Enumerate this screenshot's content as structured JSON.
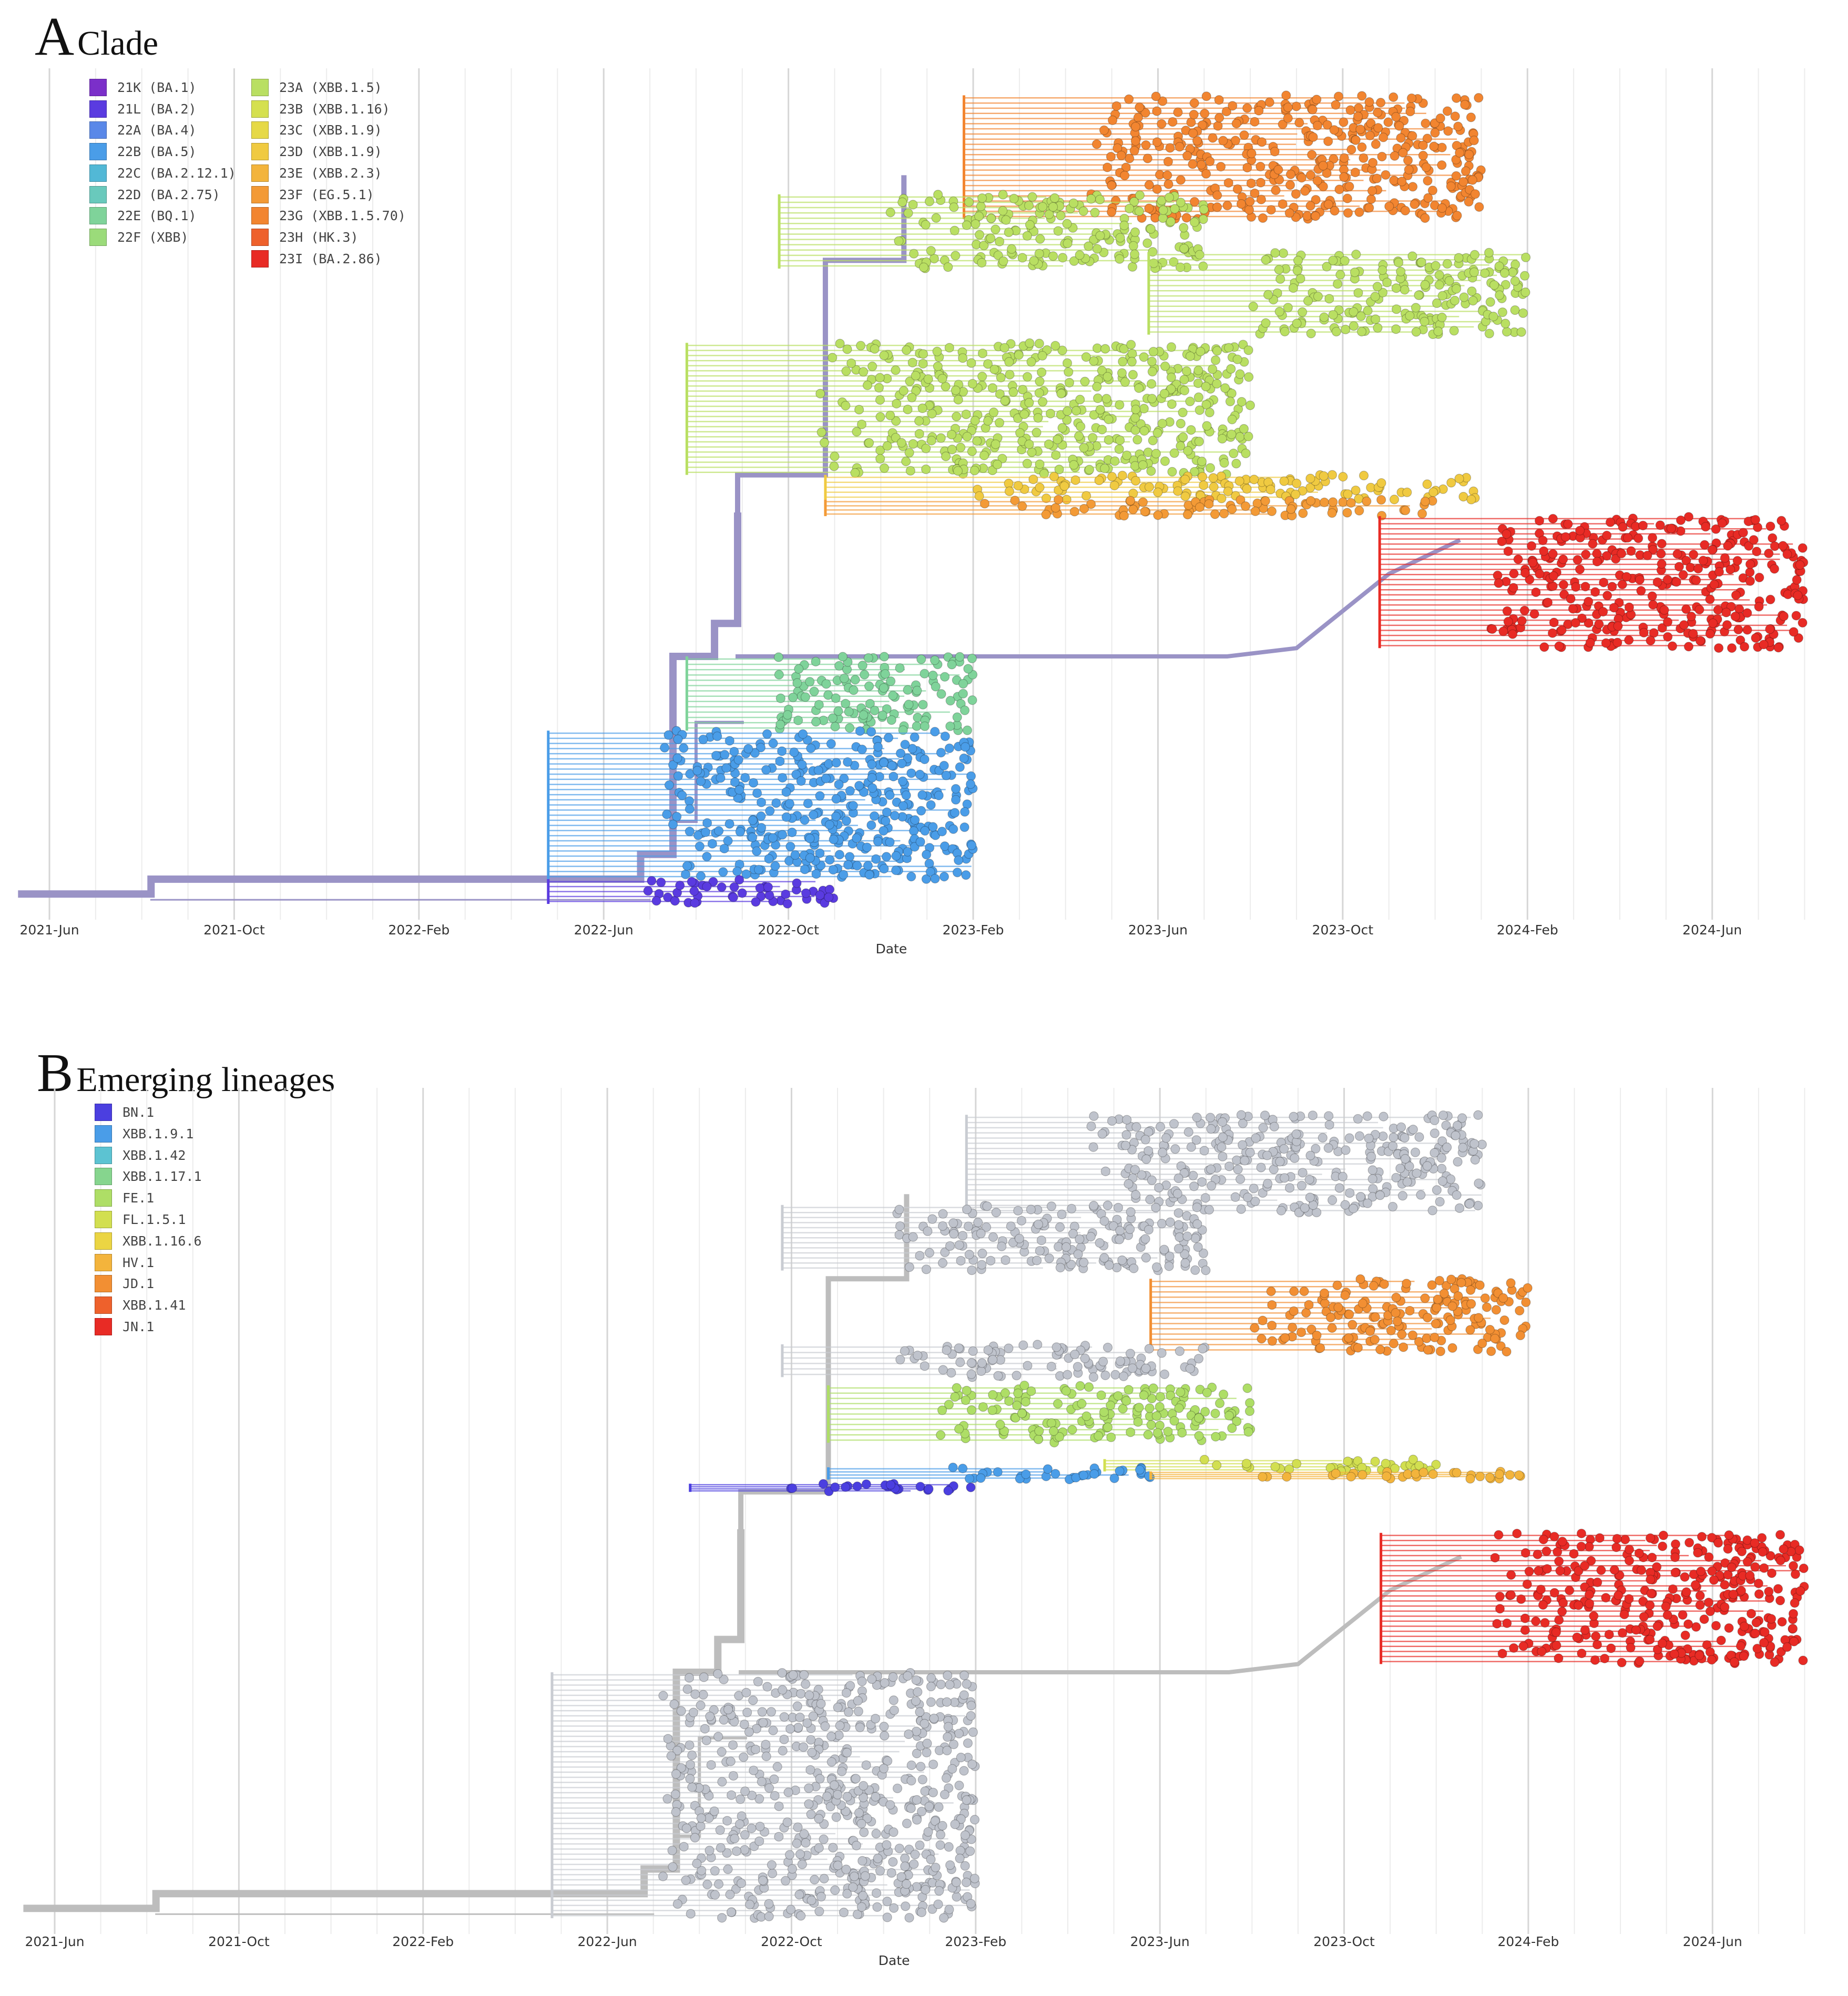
{
  "chart_data": [
    {
      "panel": "A",
      "title": "Clade",
      "type": "scatter",
      "subtype": "time-scaled phylogenetic tree",
      "xlabel": "Date",
      "x_ticks": [
        "2021-Jun",
        "2021-Oct",
        "2022-Feb",
        "2022-Jun",
        "2022-Oct",
        "2023-Feb",
        "2023-Jun",
        "2023-Oct",
        "2024-Feb",
        "2024-Jun"
      ],
      "xlim": [
        "2021-Jun",
        "2024-Aug"
      ],
      "legend_title": "",
      "legend_placement": "top-left",
      "legend": [
        {
          "label": "21K (BA.1)",
          "color": "#7B2FC9"
        },
        {
          "label": "21L (BA.2)",
          "color": "#5A3BE0"
        },
        {
          "label": "22A (BA.4)",
          "color": "#5A88E8"
        },
        {
          "label": "22B (BA.5)",
          "color": "#4A9DE8"
        },
        {
          "label": "22C (BA.2.12.1)",
          "color": "#52B8D6"
        },
        {
          "label": "22D (BA.2.75)",
          "color": "#69C9BC"
        },
        {
          "label": "22E (BQ.1)",
          "color": "#7FD39A"
        },
        {
          "label": "22F (XBB)",
          "color": "#9BDB7A"
        },
        {
          "label": "23A (XBB.1.5)",
          "color": "#B9DF62"
        },
        {
          "label": "23B (XBB.1.16)",
          "color": "#D5E04F"
        },
        {
          "label": "23C (XBB.1.9)",
          "color": "#E6D947"
        },
        {
          "label": "23D (XBB.1.9)",
          "color": "#F0CA41"
        },
        {
          "label": "23E (XBB.2.3)",
          "color": "#F3B43C"
        },
        {
          "label": "23F (EG.5.1)",
          "color": "#F39A36"
        },
        {
          "label": "23G (XBB.1.5.70)",
          "color": "#F28530"
        },
        {
          "label": "23H (HK.3)",
          "color": "#EE612C"
        },
        {
          "label": "23I (BA.2.86)",
          "color": "#E82B25"
        }
      ],
      "clusters": [
        {
          "clade": "23G (XBB.1.5.70)",
          "x_range": [
            "2023-Mar",
            "2024-Jan"
          ],
          "y_range": [
            0.83,
            0.98
          ]
        },
        {
          "clade": "23A (XBB.1.5)",
          "x_range": [
            "2022-Nov",
            "2023-Jul"
          ],
          "y_range": [
            0.77,
            0.86
          ]
        },
        {
          "clade": "23A (XBB.1.5)",
          "x_range": [
            "2023-Jul",
            "2024-Feb"
          ],
          "y_range": [
            0.69,
            0.79
          ]
        },
        {
          "clade": "23A (XBB.1.5)",
          "x_range": [
            "2022-Sep",
            "2023-Aug"
          ],
          "y_range": [
            0.52,
            0.68
          ]
        },
        {
          "clade": "23D (XBB.1.9)",
          "x_range": [
            "2022-Dec",
            "2024-Jan"
          ],
          "y_range": [
            0.49,
            0.52
          ]
        },
        {
          "clade": "23F (EG.5.1)",
          "x_range": [
            "2022-Dec",
            "2023-Dec"
          ],
          "y_range": [
            0.47,
            0.49
          ]
        },
        {
          "clade": "23I (BA.2.86)",
          "x_range": [
            "2023-Dec",
            "2024-Aug"
          ],
          "y_range": [
            0.31,
            0.47
          ]
        },
        {
          "clade": "22E (BQ.1)",
          "x_range": [
            "2022-Sep",
            "2023-Feb"
          ],
          "y_range": [
            0.21,
            0.3
          ]
        },
        {
          "clade": "22B (BA.5)",
          "x_range": [
            "2022-Jun",
            "2023-Feb"
          ],
          "y_range": [
            0.03,
            0.21
          ]
        },
        {
          "clade": "21L (BA.2)",
          "x_range": [
            "2022-Jun",
            "2022-Nov"
          ],
          "y_range": [
            0.0,
            0.03
          ]
        }
      ]
    },
    {
      "panel": "B",
      "title": "Emerging lineages",
      "type": "scatter",
      "subtype": "time-scaled phylogenetic tree",
      "xlabel": "Date",
      "x_ticks": [
        "2021-Jun",
        "2021-Oct",
        "2022-Feb",
        "2022-Jun",
        "2022-Oct",
        "2023-Feb",
        "2023-Jun",
        "2023-Oct",
        "2024-Feb",
        "2024-Jun"
      ],
      "xlim": [
        "2021-Jun",
        "2024-Aug"
      ],
      "legend_title": "",
      "legend_placement": "top-left",
      "legend": [
        {
          "label": "BN.1",
          "color": "#4B3FE0"
        },
        {
          "label": "XBB.1.9.1",
          "color": "#4A9DE8"
        },
        {
          "label": "XBB.1.42",
          "color": "#5CC3D2"
        },
        {
          "label": "XBB.1.17.1",
          "color": "#86D58E"
        },
        {
          "label": "FE.1",
          "color": "#AEDE66"
        },
        {
          "label": "FL.1.5.1",
          "color": "#D2DF50"
        },
        {
          "label": "XBB.1.16.6",
          "color": "#EBD543"
        },
        {
          "label": "HV.1",
          "color": "#F3B43C"
        },
        {
          "label": "JD.1",
          "color": "#F28F33"
        },
        {
          "label": "XBB.1.41",
          "color": "#EE612C"
        },
        {
          "label": "JN.1",
          "color": "#E82B25"
        }
      ],
      "background_color": "#BFC3CC",
      "clusters": [
        {
          "lineage": "other",
          "x_range": [
            "2023-Mar",
            "2024-Jan"
          ],
          "y_range": [
            0.86,
            0.98
          ]
        },
        {
          "lineage": "other",
          "x_range": [
            "2022-Nov",
            "2023-Jul"
          ],
          "y_range": [
            0.79,
            0.87
          ]
        },
        {
          "lineage": "JD.1",
          "x_range": [
            "2023-Jul",
            "2024-Feb"
          ],
          "y_range": [
            0.69,
            0.78
          ]
        },
        {
          "lineage": "other",
          "x_range": [
            "2022-Nov",
            "2023-Jul"
          ],
          "y_range": [
            0.66,
            0.7
          ]
        },
        {
          "lineage": "FE.1",
          "x_range": [
            "2022-Dec",
            "2023-Aug"
          ],
          "y_range": [
            0.58,
            0.65
          ]
        },
        {
          "lineage": "FL.1.5.1",
          "x_range": [
            "2023-Jun",
            "2023-Dec"
          ],
          "y_range": [
            0.545,
            0.56
          ]
        },
        {
          "lineage": "XBB.1.9.1",
          "x_range": [
            "2022-Dec",
            "2023-Jun"
          ],
          "y_range": [
            0.535,
            0.55
          ]
        },
        {
          "lineage": "HV.1",
          "x_range": [
            "2023-Jul",
            "2024-Feb"
          ],
          "y_range": [
            0.535,
            0.545
          ]
        },
        {
          "lineage": "BN.1",
          "x_range": [
            "2022-Sep",
            "2023-Feb"
          ],
          "y_range": [
            0.52,
            0.53
          ]
        },
        {
          "lineage": "JN.1",
          "x_range": [
            "2023-Dec",
            "2024-Aug"
          ],
          "y_range": [
            0.31,
            0.47
          ]
        },
        {
          "lineage": "other",
          "x_range": [
            "2022-Jun",
            "2023-Feb"
          ],
          "y_range": [
            0.0,
            0.3
          ]
        }
      ]
    }
  ],
  "panels": [
    {
      "letter": "A",
      "title": "Clade",
      "xlabel": "Date"
    },
    {
      "letter": "B",
      "title": "Emerging lineages",
      "xlabel": "Date"
    }
  ]
}
